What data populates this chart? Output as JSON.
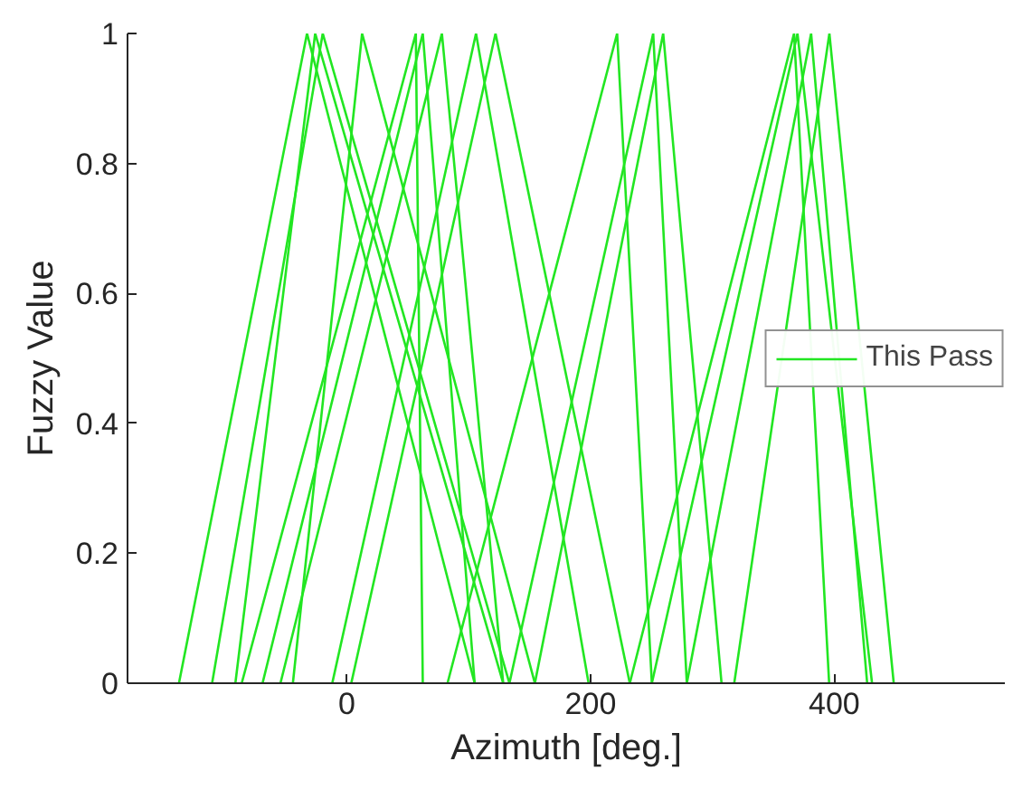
{
  "chart_data": {
    "type": "line",
    "xlabel": "Azimuth [deg.]",
    "ylabel": "Fuzzy Value",
    "xlim": [
      -180,
      540
    ],
    "ylim": [
      0,
      1
    ],
    "xticks": [
      0,
      200,
      400
    ],
    "yticks": [
      0,
      0.2,
      0.4,
      0.6,
      0.8,
      1
    ],
    "grid": false,
    "legend": "right",
    "marker": "none",
    "line_style": "solid",
    "series": [
      {
        "name": "This Pass",
        "color": "#22e622",
        "x": [
          -137.8,
          -32.7,
          104.9
        ],
        "values": [
          0,
          1,
          0
        ]
      },
      {
        "color": "#22e622",
        "x": [
          -91.5,
          -26,
          128.3
        ],
        "values": [
          0,
          1,
          0
        ]
      },
      {
        "color": "#22e622",
        "x": [
          -110.6,
          -19.8,
          133.4
        ],
        "values": [
          0,
          1,
          0
        ]
      },
      {
        "color": "#22e622",
        "x": [
          -44.3,
          12.5,
          154.3
        ],
        "values": [
          0,
          1,
          0
        ]
      },
      {
        "color": "#22e622",
        "x": [
          -86.3,
          56.6,
          62.3
        ],
        "values": [
          0,
          1,
          0
        ]
      },
      {
        "color": "#22e622",
        "x": [
          -69.2,
          62.3,
          104.9
        ],
        "values": [
          0,
          1,
          0
        ]
      },
      {
        "color": "#22e622",
        "x": [
          -54.5,
          78,
          128.3
        ],
        "values": [
          0,
          1,
          0
        ]
      },
      {
        "color": "#22e622",
        "x": [
          -12,
          106,
          198.4
        ],
        "values": [
          0,
          1,
          0
        ]
      },
      {
        "color": "#22e622",
        "x": [
          3.6,
          122,
          232.2
        ],
        "values": [
          0,
          1,
          0
        ]
      },
      {
        "color": "#22e622",
        "x": [
          82.6,
          221.8,
          250.3
        ],
        "values": [
          0,
          1,
          0
        ]
      },
      {
        "color": "#22e622",
        "x": [
          133.4,
          251.4,
          279
        ],
        "values": [
          0,
          1,
          0
        ]
      },
      {
        "color": "#22e622",
        "x": [
          154.3,
          259.6,
          307.5
        ],
        "values": [
          0,
          1,
          0
        ]
      },
      {
        "color": "#22e622",
        "x": [
          232.2,
          367,
          395.8
        ],
        "values": [
          0,
          1,
          0
        ]
      },
      {
        "color": "#22e622",
        "x": [
          250.3,
          369.8,
          431
        ],
        "values": [
          0,
          1,
          0
        ]
      },
      {
        "color": "#22e622",
        "x": [
          279,
          381,
          427
        ],
        "values": [
          0,
          1,
          0
        ]
      },
      {
        "color": "#22e622",
        "x": [
          317.9,
          396,
          448.8
        ],
        "values": [
          0,
          1,
          0
        ]
      }
    ]
  }
}
